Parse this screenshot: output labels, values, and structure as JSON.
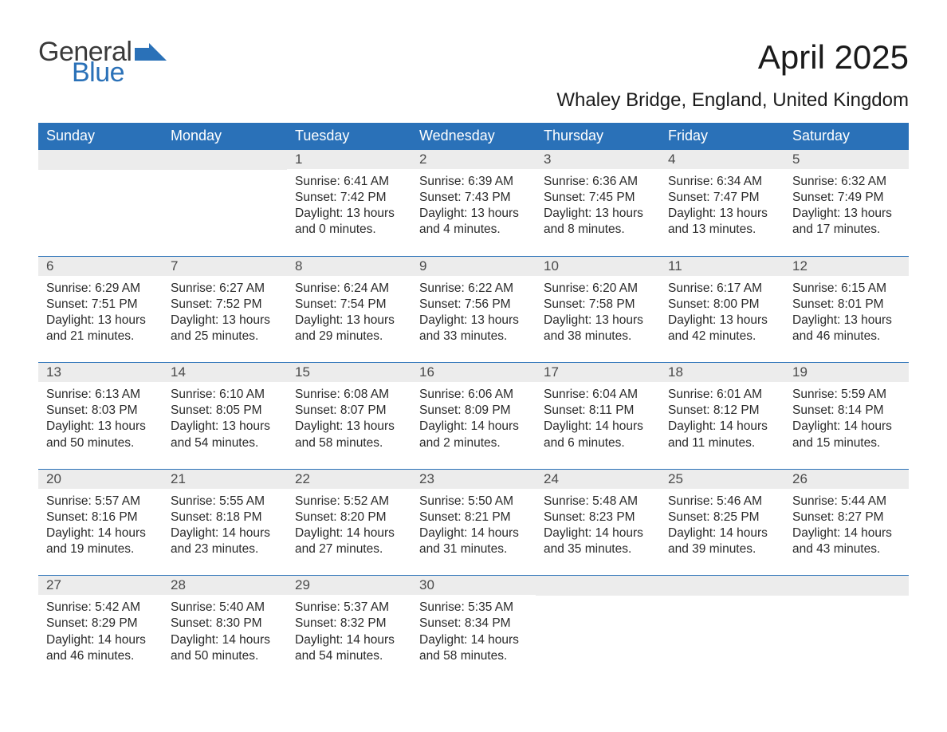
{
  "logo": {
    "text1": "General",
    "text2": "Blue",
    "accent_color": "#2a71b8"
  },
  "title": "April 2025",
  "subtitle": "Whaley Bridge, England, United Kingdom",
  "colors": {
    "header_bg": "#2a71b8",
    "header_fg": "#ffffff",
    "daynum_bg": "#ececec",
    "daynum_fg": "#4a4a4a",
    "body_text": "#2a2a2a",
    "week_border": "#2a71b8"
  },
  "day_headers": [
    "Sunday",
    "Monday",
    "Tuesday",
    "Wednesday",
    "Thursday",
    "Friday",
    "Saturday"
  ],
  "weeks": [
    [
      {
        "n": "",
        "l1": "",
        "l2": "",
        "l3": "",
        "l4": ""
      },
      {
        "n": "",
        "l1": "",
        "l2": "",
        "l3": "",
        "l4": ""
      },
      {
        "n": "1",
        "l1": "Sunrise: 6:41 AM",
        "l2": "Sunset: 7:42 PM",
        "l3": "Daylight: 13 hours",
        "l4": "and 0 minutes."
      },
      {
        "n": "2",
        "l1": "Sunrise: 6:39 AM",
        "l2": "Sunset: 7:43 PM",
        "l3": "Daylight: 13 hours",
        "l4": "and 4 minutes."
      },
      {
        "n": "3",
        "l1": "Sunrise: 6:36 AM",
        "l2": "Sunset: 7:45 PM",
        "l3": "Daylight: 13 hours",
        "l4": "and 8 minutes."
      },
      {
        "n": "4",
        "l1": "Sunrise: 6:34 AM",
        "l2": "Sunset: 7:47 PM",
        "l3": "Daylight: 13 hours",
        "l4": "and 13 minutes."
      },
      {
        "n": "5",
        "l1": "Sunrise: 6:32 AM",
        "l2": "Sunset: 7:49 PM",
        "l3": "Daylight: 13 hours",
        "l4": "and 17 minutes."
      }
    ],
    [
      {
        "n": "6",
        "l1": "Sunrise: 6:29 AM",
        "l2": "Sunset: 7:51 PM",
        "l3": "Daylight: 13 hours",
        "l4": "and 21 minutes."
      },
      {
        "n": "7",
        "l1": "Sunrise: 6:27 AM",
        "l2": "Sunset: 7:52 PM",
        "l3": "Daylight: 13 hours",
        "l4": "and 25 minutes."
      },
      {
        "n": "8",
        "l1": "Sunrise: 6:24 AM",
        "l2": "Sunset: 7:54 PM",
        "l3": "Daylight: 13 hours",
        "l4": "and 29 minutes."
      },
      {
        "n": "9",
        "l1": "Sunrise: 6:22 AM",
        "l2": "Sunset: 7:56 PM",
        "l3": "Daylight: 13 hours",
        "l4": "and 33 minutes."
      },
      {
        "n": "10",
        "l1": "Sunrise: 6:20 AM",
        "l2": "Sunset: 7:58 PM",
        "l3": "Daylight: 13 hours",
        "l4": "and 38 minutes."
      },
      {
        "n": "11",
        "l1": "Sunrise: 6:17 AM",
        "l2": "Sunset: 8:00 PM",
        "l3": "Daylight: 13 hours",
        "l4": "and 42 minutes."
      },
      {
        "n": "12",
        "l1": "Sunrise: 6:15 AM",
        "l2": "Sunset: 8:01 PM",
        "l3": "Daylight: 13 hours",
        "l4": "and 46 minutes."
      }
    ],
    [
      {
        "n": "13",
        "l1": "Sunrise: 6:13 AM",
        "l2": "Sunset: 8:03 PM",
        "l3": "Daylight: 13 hours",
        "l4": "and 50 minutes."
      },
      {
        "n": "14",
        "l1": "Sunrise: 6:10 AM",
        "l2": "Sunset: 8:05 PM",
        "l3": "Daylight: 13 hours",
        "l4": "and 54 minutes."
      },
      {
        "n": "15",
        "l1": "Sunrise: 6:08 AM",
        "l2": "Sunset: 8:07 PM",
        "l3": "Daylight: 13 hours",
        "l4": "and 58 minutes."
      },
      {
        "n": "16",
        "l1": "Sunrise: 6:06 AM",
        "l2": "Sunset: 8:09 PM",
        "l3": "Daylight: 14 hours",
        "l4": "and 2 minutes."
      },
      {
        "n": "17",
        "l1": "Sunrise: 6:04 AM",
        "l2": "Sunset: 8:11 PM",
        "l3": "Daylight: 14 hours",
        "l4": "and 6 minutes."
      },
      {
        "n": "18",
        "l1": "Sunrise: 6:01 AM",
        "l2": "Sunset: 8:12 PM",
        "l3": "Daylight: 14 hours",
        "l4": "and 11 minutes."
      },
      {
        "n": "19",
        "l1": "Sunrise: 5:59 AM",
        "l2": "Sunset: 8:14 PM",
        "l3": "Daylight: 14 hours",
        "l4": "and 15 minutes."
      }
    ],
    [
      {
        "n": "20",
        "l1": "Sunrise: 5:57 AM",
        "l2": "Sunset: 8:16 PM",
        "l3": "Daylight: 14 hours",
        "l4": "and 19 minutes."
      },
      {
        "n": "21",
        "l1": "Sunrise: 5:55 AM",
        "l2": "Sunset: 8:18 PM",
        "l3": "Daylight: 14 hours",
        "l4": "and 23 minutes."
      },
      {
        "n": "22",
        "l1": "Sunrise: 5:52 AM",
        "l2": "Sunset: 8:20 PM",
        "l3": "Daylight: 14 hours",
        "l4": "and 27 minutes."
      },
      {
        "n": "23",
        "l1": "Sunrise: 5:50 AM",
        "l2": "Sunset: 8:21 PM",
        "l3": "Daylight: 14 hours",
        "l4": "and 31 minutes."
      },
      {
        "n": "24",
        "l1": "Sunrise: 5:48 AM",
        "l2": "Sunset: 8:23 PM",
        "l3": "Daylight: 14 hours",
        "l4": "and 35 minutes."
      },
      {
        "n": "25",
        "l1": "Sunrise: 5:46 AM",
        "l2": "Sunset: 8:25 PM",
        "l3": "Daylight: 14 hours",
        "l4": "and 39 minutes."
      },
      {
        "n": "26",
        "l1": "Sunrise: 5:44 AM",
        "l2": "Sunset: 8:27 PM",
        "l3": "Daylight: 14 hours",
        "l4": "and 43 minutes."
      }
    ],
    [
      {
        "n": "27",
        "l1": "Sunrise: 5:42 AM",
        "l2": "Sunset: 8:29 PM",
        "l3": "Daylight: 14 hours",
        "l4": "and 46 minutes."
      },
      {
        "n": "28",
        "l1": "Sunrise: 5:40 AM",
        "l2": "Sunset: 8:30 PM",
        "l3": "Daylight: 14 hours",
        "l4": "and 50 minutes."
      },
      {
        "n": "29",
        "l1": "Sunrise: 5:37 AM",
        "l2": "Sunset: 8:32 PM",
        "l3": "Daylight: 14 hours",
        "l4": "and 54 minutes."
      },
      {
        "n": "30",
        "l1": "Sunrise: 5:35 AM",
        "l2": "Sunset: 8:34 PM",
        "l3": "Daylight: 14 hours",
        "l4": "and 58 minutes."
      },
      {
        "n": "",
        "l1": "",
        "l2": "",
        "l3": "",
        "l4": ""
      },
      {
        "n": "",
        "l1": "",
        "l2": "",
        "l3": "",
        "l4": ""
      },
      {
        "n": "",
        "l1": "",
        "l2": "",
        "l3": "",
        "l4": ""
      }
    ]
  ]
}
